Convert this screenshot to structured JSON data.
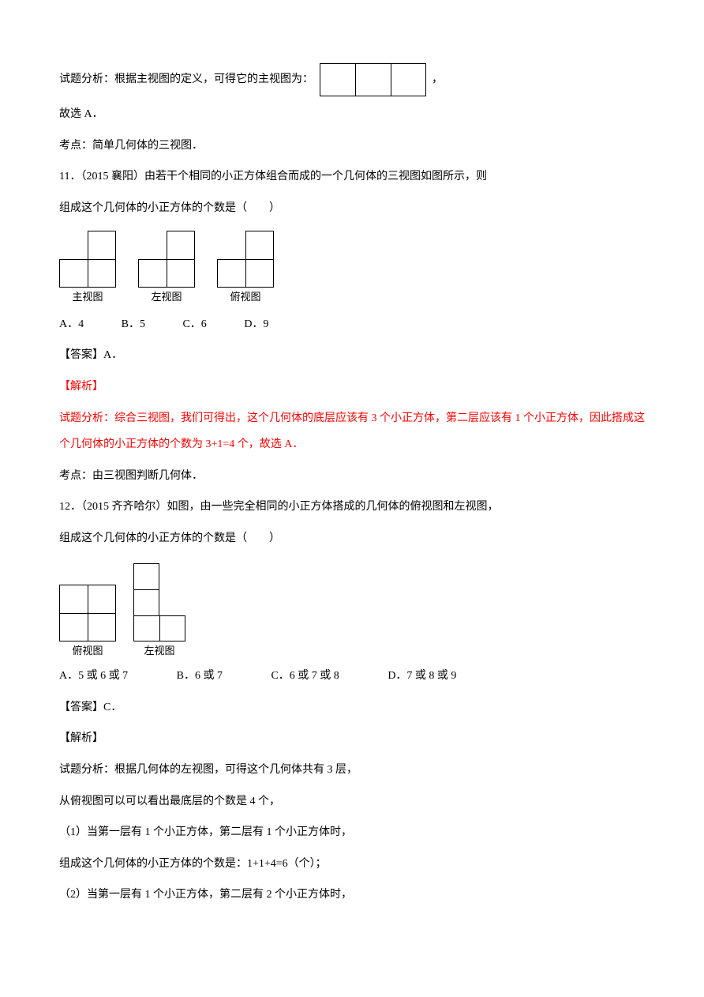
{
  "p1": {
    "prefix": "试题分析：根据主视图的定义，可得它的主视图为：",
    "suffix": "，"
  },
  "p2": "故选 A．",
  "p3": "考点：简单几何体的三视图．",
  "q11": {
    "num": "11．（2015 襄阳）由若干个相同的小正方体组合而成的一个几何体的三视图如图所示，则",
    "cont": "组成这个几何体的小正方体的个数是（　　）"
  },
  "views11": {
    "main": "主视图",
    "left": "左视图",
    "top": "俯视图"
  },
  "opts11": {
    "a": "A．4",
    "b": "B．5",
    "c": "C．6",
    "d": "D．9"
  },
  "ans11": "【答案】A．",
  "analysis11": {
    "label": "【解析】",
    "line1": "试题分析：综合三视图，我们可得出，这个几何体的底层应该有 3 个小正方体，第二层应该有 1 个小正方体，因此搭成这个几何体的小正方体的个数为 3+1=4 个，故选 A．"
  },
  "kaodian11": "考点：由三视图判断几何体．",
  "q12": {
    "num": "12．（2015 齐齐哈尔）如图，由一些完全相同的小正方体搭成的几何体的俯视图和左视图，",
    "cont": "组成这个几何体的小正方体的个数是（　　）"
  },
  "views12": {
    "top": "俯视图",
    "left": "左视图"
  },
  "opts12": {
    "a": "A．5 或 6 或 7",
    "b": "B．6 或 7",
    "c": "C．6 或 7 或 8",
    "d": "D．7 或 8 或 9"
  },
  "ans12": "【答案】C．",
  "analysis12": {
    "label": "【解析】",
    "line1": "试题分析：根据几何体的左视图，可得这个几何体共有 3 层，",
    "line2": "从俯视图可以可以看出最底层的个数是 4 个，",
    "line3": "（1）当第一层有 1 个小正方体，第二层有 1 个小正方体时，",
    "line4": "组成这个几何体的小正方体的个数是：1+1+4=6（个）；",
    "line5": "（2）当第一层有 1 个小正方体，第二层有 2 个小正方体时，"
  }
}
